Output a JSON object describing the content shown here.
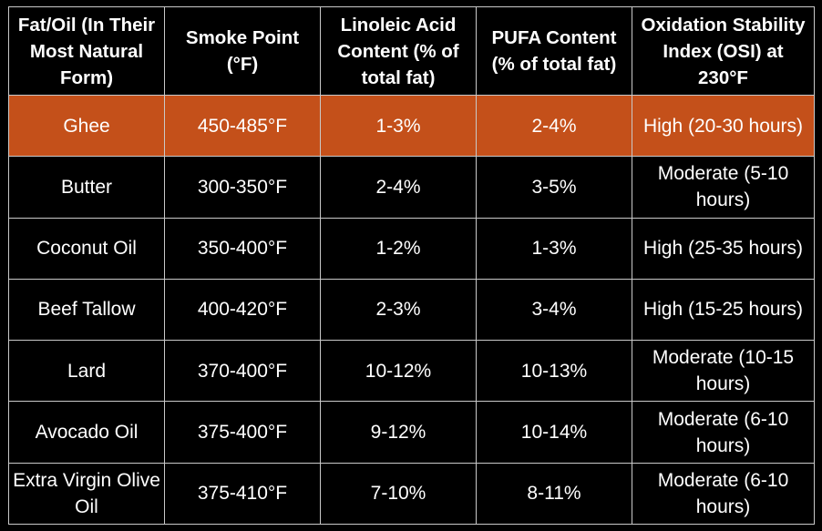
{
  "colors": {
    "background": "#000000",
    "highlight_row": "#c4501a",
    "text": "#ffffff",
    "border": "#c9c9c9"
  },
  "table": {
    "headers": [
      "Fat/Oil (In Their Most Natural Form)",
      "Smoke Point (°F)",
      "Linoleic Acid Content (% of total fat)",
      "PUFA Content (% of total fat)",
      "Oxidation Stability Index (OSI) at 230°F"
    ],
    "rows": [
      [
        "Ghee",
        "450-485°F",
        "1-3%",
        "2-4%",
        "High (20-30 hours)"
      ],
      [
        "Butter",
        "300-350°F",
        "2-4%",
        "3-5%",
        "Moderate (5-10 hours)"
      ],
      [
        "Coconut Oil",
        "350-400°F",
        "1-2%",
        "1-3%",
        "High (25-35 hours)"
      ],
      [
        "Beef Tallow",
        "400-420°F",
        "2-3%",
        "3-4%",
        "High (15-25 hours)"
      ],
      [
        "Lard",
        "370-400°F",
        "10-12%",
        "10-13%",
        "Moderate (10-15 hours)"
      ],
      [
        "Avocado Oil",
        "375-400°F",
        "9-12%",
        "10-14%",
        "Moderate (6-10 hours)"
      ],
      [
        "Extra Virgin Olive Oil",
        "375-410°F",
        "7-10%",
        "8-11%",
        "Moderate (6-10 hours)"
      ]
    ]
  }
}
